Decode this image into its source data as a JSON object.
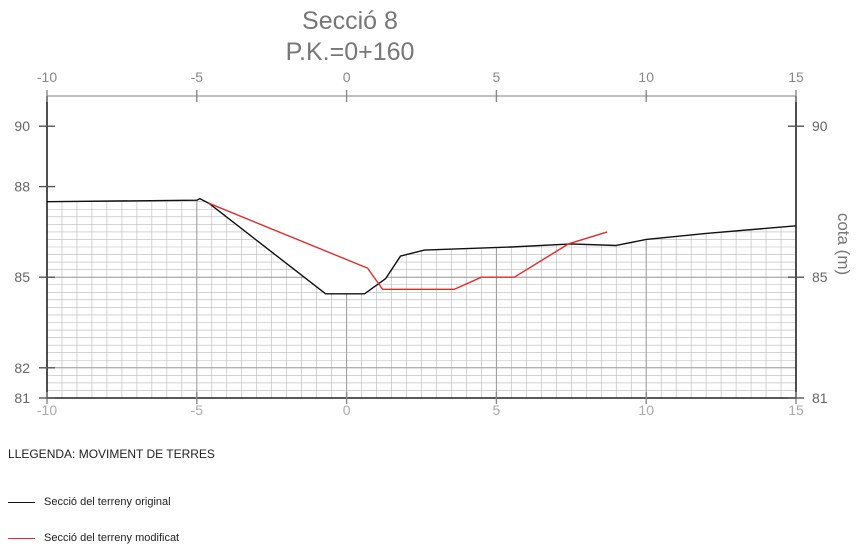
{
  "chart_data": {
    "type": "line",
    "title": "Secció 8",
    "subtitle": "P.K.=0+160",
    "ylabel": "cota (m)",
    "xlabel": "",
    "xlim": [
      -10,
      15
    ],
    "ylim": [
      81,
      91
    ],
    "x_ticks": [
      -10,
      -5,
      0,
      5,
      10,
      15
    ],
    "y_ticks_left": [
      81,
      82,
      85,
      88,
      90
    ],
    "y_ticks_right": [
      81,
      85,
      90
    ],
    "grid": "hatched fill below original terrain profile (step 0.5 in x, 0.25 in y)",
    "series": [
      {
        "name": "Secció del terreny original",
        "color": "#111111",
        "x": [
          -10,
          -5,
          -4.9,
          -4.6,
          -0.7,
          0.6,
          1.3,
          1.8,
          2.6,
          5.5,
          7.5,
          9.0,
          10.0,
          12.0,
          15.0
        ],
        "y": [
          87.5,
          87.55,
          87.6,
          87.45,
          84.45,
          84.45,
          84.95,
          85.7,
          85.9,
          86.0,
          86.1,
          86.05,
          86.25,
          86.45,
          86.7
        ]
      },
      {
        "name": "Secció del terreny modificat",
        "color": "#e52a2a",
        "x": [
          -4.6,
          0.7,
          1.2,
          3.6,
          4.5,
          5.6,
          7.4,
          8.7
        ],
        "y": [
          87.45,
          85.3,
          84.6,
          84.6,
          85.0,
          85.0,
          86.1,
          86.5
        ]
      }
    ]
  },
  "legend": {
    "title": "LLEGENDA: MOVIMENT DE TERRES",
    "items": [
      {
        "label": "Secció del terreny original",
        "color": "#111111"
      },
      {
        "label": "Secció del terreny modificat",
        "color": "#e52a2a"
      }
    ]
  }
}
